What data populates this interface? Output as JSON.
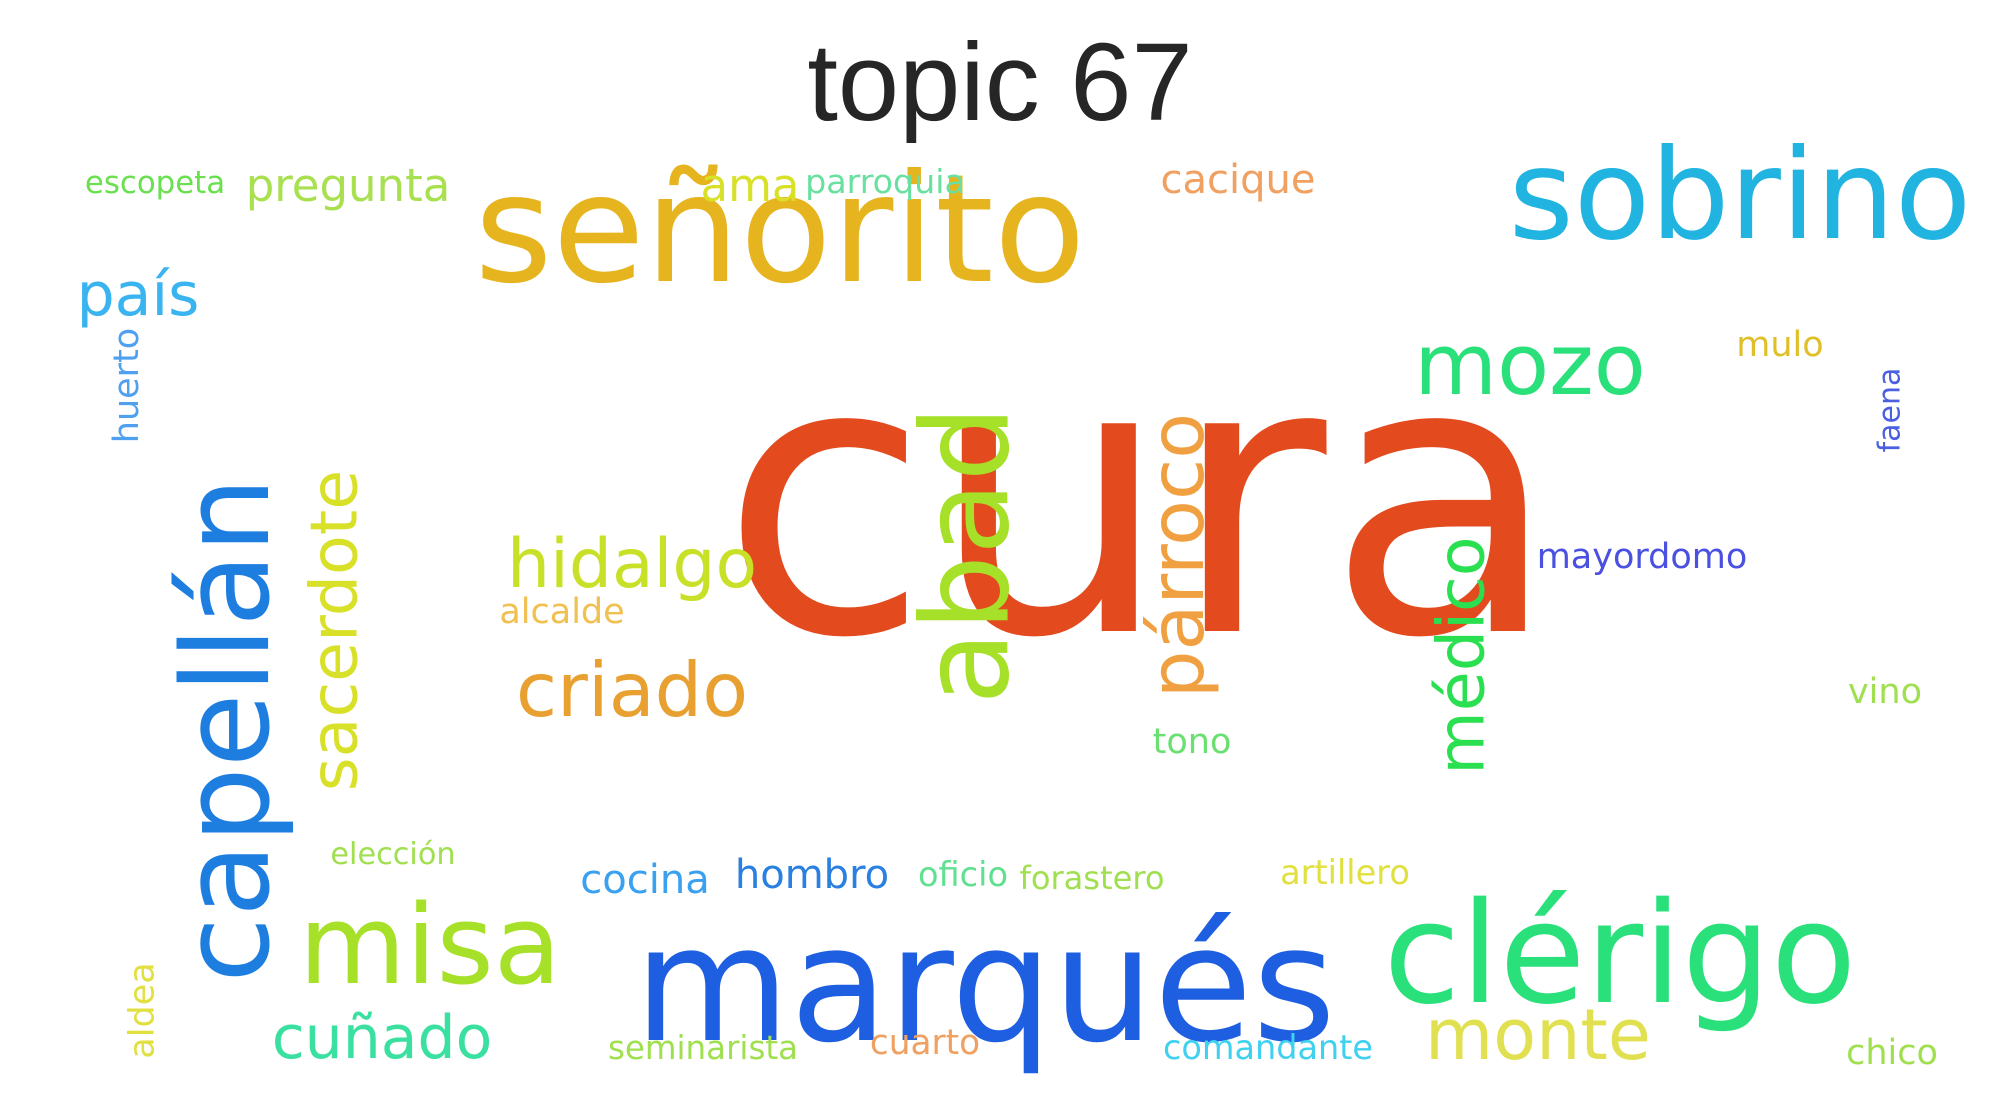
{
  "title": "topic 67",
  "words": [
    {
      "text": "cura",
      "color": "#e34a1e"
    },
    {
      "text": "señorito",
      "color": "#e6b41e"
    },
    {
      "text": "sobrino",
      "color": "#22b4e0"
    },
    {
      "text": "marqués",
      "color": "#1e5ee0"
    },
    {
      "text": "clérigo",
      "color": "#2ae07a"
    },
    {
      "text": "capellán",
      "color": "#1e7ee0"
    },
    {
      "text": "misa",
      "color": "#a6e028"
    },
    {
      "text": "mozo",
      "color": "#2ae07a"
    },
    {
      "text": "abad",
      "color": "#a6e028"
    },
    {
      "text": "sacerdote",
      "color": "#d8e028"
    },
    {
      "text": "párroco",
      "color": "#f0a040"
    },
    {
      "text": "médico",
      "color": "#2ae050"
    },
    {
      "text": "hidalgo",
      "color": "#c8e028"
    },
    {
      "text": "criado",
      "color": "#e8a030"
    },
    {
      "text": "monte",
      "color": "#e0e050"
    },
    {
      "text": "cuñado",
      "color": "#3ae0a0"
    },
    {
      "text": "país",
      "color": "#3ab4f0"
    },
    {
      "text": "pregunta",
      "color": "#a8e050"
    },
    {
      "text": "ama",
      "color": "#d8e028"
    },
    {
      "text": "parroquia",
      "color": "#6ae0a0"
    },
    {
      "text": "cacique",
      "color": "#f0a060"
    },
    {
      "text": "escopeta",
      "color": "#6ae050"
    },
    {
      "text": "mulo",
      "color": "#e0c028"
    },
    {
      "text": "huerto",
      "color": "#50a0f0"
    },
    {
      "text": "faena",
      "color": "#4a60e0"
    },
    {
      "text": "mayordomo",
      "color": "#4a50e0"
    },
    {
      "text": "alcalde",
      "color": "#f0c050"
    },
    {
      "text": "vino",
      "color": "#a0e050"
    },
    {
      "text": "tono",
      "color": "#6ae070"
    },
    {
      "text": "elección",
      "color": "#a0e050"
    },
    {
      "text": "cocina",
      "color": "#3aa0f0"
    },
    {
      "text": "hombro",
      "color": "#2a80e0"
    },
    {
      "text": "oficio",
      "color": "#60e090"
    },
    {
      "text": "forastero",
      "color": "#a0e050"
    },
    {
      "text": "artillero",
      "color": "#e0e040"
    },
    {
      "text": "aldea",
      "color": "#e0e040"
    },
    {
      "text": "seminarista",
      "color": "#a0e050"
    },
    {
      "text": "cuarto",
      "color": "#f0a060"
    },
    {
      "text": "comandante",
      "color": "#40d0f0"
    },
    {
      "text": "chico",
      "color": "#a0e050"
    }
  ]
}
